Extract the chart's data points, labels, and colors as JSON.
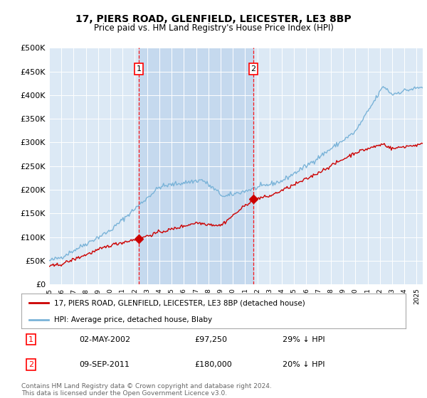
{
  "title": "17, PIERS ROAD, GLENFIELD, LEICESTER, LE3 8BP",
  "subtitle": "Price paid vs. HM Land Registry's House Price Index (HPI)",
  "plot_bg_color": "#dce9f5",
  "hpi_color": "#7ab3d8",
  "price_color": "#cc0000",
  "shade_color": "#c5d9ee",
  "ylim": [
    0,
    500000
  ],
  "yticks": [
    0,
    50000,
    100000,
    150000,
    200000,
    250000,
    300000,
    350000,
    400000,
    450000,
    500000
  ],
  "ytick_labels": [
    "£0",
    "£50K",
    "£100K",
    "£150K",
    "£200K",
    "£250K",
    "£300K",
    "£350K",
    "£400K",
    "£450K",
    "£500K"
  ],
  "sale1_date": 2002.33,
  "sale1_price": 97250,
  "sale1_label": "1",
  "sale1_text": "02-MAY-2002",
  "sale1_amount": "£97,250",
  "sale1_hpi": "29% ↓ HPI",
  "sale2_date": 2011.67,
  "sale2_price": 180000,
  "sale2_label": "2",
  "sale2_text": "09-SEP-2011",
  "sale2_amount": "£180,000",
  "sale2_hpi": "20% ↓ HPI",
  "legend_line1": "17, PIERS ROAD, GLENFIELD, LEICESTER, LE3 8BP (detached house)",
  "legend_line2": "HPI: Average price, detached house, Blaby",
  "footer": "Contains HM Land Registry data © Crown copyright and database right 2024.\nThis data is licensed under the Open Government Licence v3.0.",
  "xmin": 1995,
  "xmax": 2025.5
}
